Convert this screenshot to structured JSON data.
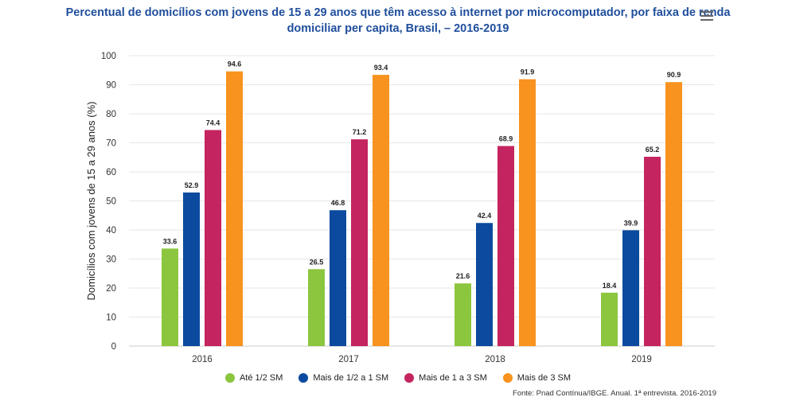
{
  "title_line1": "Percentual de domicílios com jovens de 15 a 29 anos que têm acesso à internet por microcomputador, por faixa de renda",
  "title_line2": "domiciliar per capita, Brasil, – 2016-2019",
  "source": "Fonte: Pnad Contínua/IBGE. Anual. 1ª entrevista. 2016-2019",
  "menu_icon": "hamburger-menu-icon",
  "chart_data": {
    "type": "bar",
    "categories": [
      "2016",
      "2017",
      "2018",
      "2019"
    ],
    "ylabel": "Domicílios com jovens de 15 a 29 anos (%)",
    "ylim": [
      0,
      100
    ],
    "yticks": [
      0,
      10,
      20,
      30,
      40,
      50,
      60,
      70,
      80,
      90,
      100
    ],
    "grid": true,
    "legend_position": "bottom",
    "series": [
      {
        "name": "Até 1/2 SM",
        "color": "#8cc63f",
        "values": [
          33.6,
          26.5,
          21.6,
          18.4
        ]
      },
      {
        "name": "Mais de 1/2 a 1 SM",
        "color": "#0b4a9e",
        "values": [
          52.9,
          46.8,
          42.4,
          39.9
        ]
      },
      {
        "name": "Mais de 1 a 3 SM",
        "color": "#c4245f",
        "values": [
          74.4,
          71.2,
          68.9,
          65.2
        ]
      },
      {
        "name": "Mais de 3 SM",
        "color": "#f7931e",
        "values": [
          94.6,
          93.4,
          91.9,
          90.9
        ]
      }
    ]
  }
}
